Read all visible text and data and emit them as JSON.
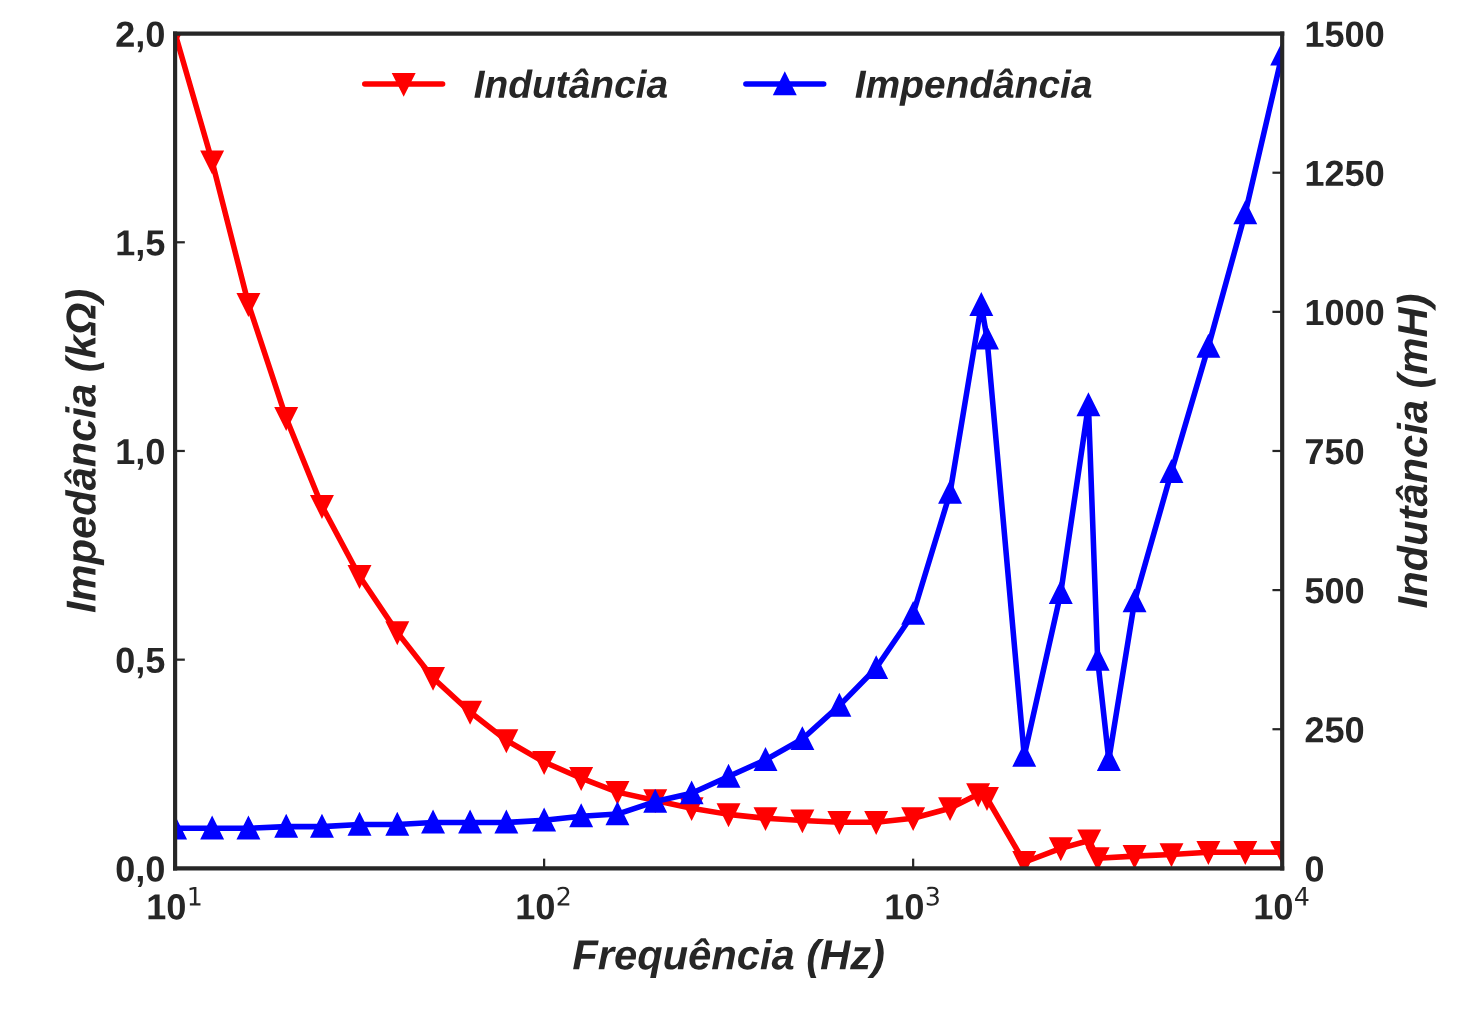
{
  "chart_data": {
    "type": "line",
    "xlabel": "Frequência (Hz)",
    "ylabel": "Impedância (kΩ)",
    "y2label": "Indutância (mH)",
    "log": "x",
    "legend": "top",
    "grid": false,
    "line_style": "solid",
    "xlim": [
      10,
      10000
    ],
    "xticks": [
      {
        "value": 10,
        "label": "10$^{1}$"
      },
      {
        "value": 100,
        "label": "10$^{2}$"
      },
      {
        "value": 1000,
        "label": "10$^{3}$"
      },
      {
        "value": 10000,
        "label": "10$^{4}$"
      }
    ],
    "ylim": [
      0,
      2
    ],
    "yticks": [
      {
        "value": 0,
        "label": "0,0"
      },
      {
        "value": 0.5,
        "label": "0,5"
      },
      {
        "value": 1,
        "label": "1,0"
      },
      {
        "value": 1.5,
        "label": "1,5"
      },
      {
        "value": 2,
        "label": "2,0"
      }
    ],
    "y2lim": [
      0,
      1500
    ],
    "y2ticks": [
      0,
      250,
      500,
      750,
      1000,
      1250,
      1500
    ],
    "series": [
      {
        "name": "Indutância",
        "color": "#ff0000",
        "axis": "y2",
        "marker": "triangle_down",
        "x": [
          10,
          12.6,
          15.8,
          20,
          25,
          31.6,
          40,
          50,
          63,
          79,
          100,
          126,
          158,
          200,
          251,
          316,
          398,
          501,
          631,
          794,
          1000,
          1259,
          1500,
          1585,
          2000,
          2512,
          3000,
          3162,
          3981,
          5012,
          6310,
          7943,
          10000
        ],
        "values": [
          1500,
          1270,
          1014,
          809,
          651,
          525,
          424,
          342,
          281,
          230,
          191,
          162,
          137,
          122,
          108,
          97,
          90,
          86,
          83,
          83,
          90,
          108,
          133,
          126,
          11,
          36,
          50,
          18,
          22,
          25,
          29,
          29,
          29
        ]
      },
      {
        "name": "Impendância",
        "color": "#0000ff",
        "axis": "y",
        "marker": "triangle",
        "x": [
          10,
          12.6,
          15.8,
          20,
          25,
          31.6,
          40,
          50,
          63,
          79,
          100,
          126,
          158,
          200,
          251,
          316,
          398,
          501,
          631,
          794,
          1000,
          1259,
          1530,
          1585,
          2000,
          2512,
          2985,
          3162,
          3390,
          3981,
          5012,
          6310,
          7943,
          10000
        ],
        "values": [
          0.096,
          0.096,
          0.096,
          0.1,
          0.1,
          0.105,
          0.105,
          0.11,
          0.11,
          0.11,
          0.115,
          0.125,
          0.13,
          0.16,
          0.18,
          0.22,
          0.26,
          0.31,
          0.39,
          0.48,
          0.61,
          0.9,
          1.35,
          1.27,
          0.27,
          0.66,
          1.11,
          0.5,
          0.26,
          0.64,
          0.95,
          1.25,
          1.57,
          1.95
        ]
      }
    ]
  }
}
